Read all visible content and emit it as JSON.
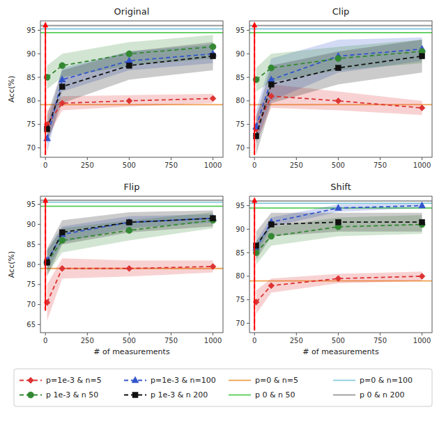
{
  "chart_data": [
    {
      "type": "line",
      "title": "Original",
      "ylabel": "Acc(%)",
      "x": [
        10,
        100,
        500,
        1000
      ],
      "xlim": [
        -30,
        1060
      ],
      "xticks": [
        0,
        250,
        500,
        750,
        1000
      ],
      "ylim": [
        68,
        97
      ],
      "yticks": [
        70,
        75,
        80,
        85,
        90,
        95
      ],
      "grid": false,
      "legend": "bottom",
      "annotations": [
        {
          "type": "arrow",
          "x": 0,
          "y_from": 68.5,
          "y_to": 96.8,
          "dash_to": 95.8,
          "color": "red"
        }
      ],
      "series": [
        {
          "name": "p=1e-3 & n=5",
          "type": "line",
          "color": "#dd3333",
          "line_style": "dashed",
          "marker": "diamond",
          "values": [
            75.0,
            79.5,
            80.0,
            80.5
          ],
          "std": [
            3.0,
            1.5,
            1.2,
            1.0
          ]
        },
        {
          "name": "p=1e-3 & n=100",
          "type": "line",
          "color": "#3355cc",
          "line_style": "dashed",
          "marker": "triangle",
          "values": [
            72.0,
            84.5,
            88.5,
            90.0
          ],
          "std": [
            3.0,
            2.5,
            2.0,
            2.0
          ]
        },
        {
          "name": "p=0 & n=5",
          "type": "hline",
          "color": "#f0a050",
          "line_style": "solid",
          "value": 79.2
        },
        {
          "name": "p=0 & n=100",
          "type": "hline",
          "color": "#88ccdd",
          "line_style": "solid",
          "value": 95.3
        },
        {
          "name": "p 1e-3 & n 50",
          "type": "line",
          "color": "#338833",
          "line_style": "dashed",
          "marker": "circle",
          "values": [
            85.0,
            87.5,
            90.0,
            91.5
          ],
          "std": [
            2.5,
            2.5,
            2.5,
            2.5
          ]
        },
        {
          "name": "p 1e-3 & n 200",
          "type": "line",
          "color": "#111111",
          "line_style": "dashed",
          "marker": "square",
          "values": [
            74.0,
            83.0,
            87.5,
            89.5
          ],
          "std": [
            3.0,
            3.5,
            3.0,
            3.0
          ]
        },
        {
          "name": "p 0 & n 50",
          "type": "hline",
          "color": "#55cc55",
          "line_style": "solid",
          "value": 94.5
        },
        {
          "name": "p 0 & n 200",
          "type": "hline",
          "color": "#999999",
          "line_style": "solid",
          "value": 96.0
        }
      ]
    },
    {
      "type": "line",
      "title": "Clip",
      "x": [
        10,
        100,
        500,
        1000
      ],
      "xlim": [
        -30,
        1060
      ],
      "xticks": [
        0,
        250,
        500,
        750,
        1000
      ],
      "ylim": [
        68,
        97
      ],
      "yticks": [
        70,
        75,
        80,
        85,
        90,
        95
      ],
      "grid": false,
      "annotations": [
        {
          "type": "arrow",
          "x": 0,
          "y_from": 68.5,
          "y_to": 96.8,
          "dash_to": 95.8,
          "color": "red"
        }
      ],
      "series": [
        {
          "name": "p=1e-3 & n=5",
          "type": "line",
          "color": "#dd3333",
          "line_style": "dashed",
          "marker": "diamond",
          "values": [
            74.0,
            81.0,
            80.0,
            78.5
          ],
          "std": [
            3.0,
            2.5,
            2.0,
            1.5
          ]
        },
        {
          "name": "p=1e-3 & n=100",
          "type": "line",
          "color": "#3355cc",
          "line_style": "dashed",
          "marker": "triangle",
          "values": [
            74.5,
            84.5,
            89.5,
            91.0
          ],
          "std": [
            3.5,
            4.5,
            3.5,
            2.5
          ]
        },
        {
          "name": "p=0 & n=5",
          "type": "hline",
          "color": "#f0a050",
          "line_style": "solid",
          "value": 79.2
        },
        {
          "name": "p=0 & n=100",
          "type": "hline",
          "color": "#88ccdd",
          "line_style": "solid",
          "value": 95.3
        },
        {
          "name": "p 1e-3 & n 50",
          "type": "line",
          "color": "#338833",
          "line_style": "dashed",
          "marker": "circle",
          "values": [
            84.5,
            87.0,
            89.0,
            90.5
          ],
          "std": [
            2.5,
            3.0,
            2.5,
            2.5
          ]
        },
        {
          "name": "p 1e-3 & n 200",
          "type": "line",
          "color": "#111111",
          "line_style": "dashed",
          "marker": "square",
          "values": [
            72.5,
            83.5,
            87.0,
            89.5
          ],
          "std": [
            4.0,
            4.0,
            3.5,
            3.5
          ]
        },
        {
          "name": "p 0 & n 50",
          "type": "hline",
          "color": "#55cc55",
          "line_style": "solid",
          "value": 94.5
        },
        {
          "name": "p 0 & n 200",
          "type": "hline",
          "color": "#999999",
          "line_style": "solid",
          "value": 96.0
        }
      ]
    },
    {
      "type": "line",
      "title": "Flip",
      "ylabel": "Acc(%)",
      "xlabel": "# of measurements",
      "x": [
        10,
        100,
        500,
        1000
      ],
      "xlim": [
        -30,
        1060
      ],
      "xticks": [
        0,
        250,
        500,
        750,
        1000
      ],
      "ylim": [
        63,
        97
      ],
      "yticks": [
        65,
        70,
        75,
        80,
        85,
        90,
        95
      ],
      "grid": false,
      "annotations": [
        {
          "type": "arrow",
          "x": 0,
          "y_from": 68.5,
          "y_to": 96.8,
          "dash_to": 95.8,
          "color": "red"
        }
      ],
      "series": [
        {
          "name": "p=1e-3 & n=5",
          "type": "line",
          "color": "#dd3333",
          "line_style": "dashed",
          "marker": "diamond",
          "values": [
            70.5,
            79.0,
            79.0,
            79.5
          ],
          "std": [
            4.5,
            2.5,
            2.0,
            1.5
          ]
        },
        {
          "name": "p=1e-3 & n=100",
          "type": "line",
          "color": "#3355cc",
          "line_style": "dashed",
          "marker": "triangle",
          "values": [
            81.0,
            87.5,
            90.5,
            91.5
          ],
          "std": [
            2.5,
            2.0,
            1.5,
            1.0
          ]
        },
        {
          "name": "p=0 & n=5",
          "type": "hline",
          "color": "#f0a050",
          "line_style": "solid",
          "value": 79.0
        },
        {
          "name": "p=0 & n=100",
          "type": "hline",
          "color": "#88ccdd",
          "line_style": "solid",
          "value": 95.5
        },
        {
          "name": "p 1e-3 & n 50",
          "type": "line",
          "color": "#338833",
          "line_style": "dashed",
          "marker": "circle",
          "values": [
            80.5,
            86.0,
            88.5,
            91.0
          ],
          "std": [
            3.0,
            3.0,
            2.5,
            2.0
          ]
        },
        {
          "name": "p 1e-3 & n 200",
          "type": "line",
          "color": "#111111",
          "line_style": "dashed",
          "marker": "square",
          "values": [
            80.5,
            88.0,
            90.5,
            91.5
          ],
          "std": [
            3.5,
            3.0,
            2.5,
            2.0
          ]
        },
        {
          "name": "p 0 & n 50",
          "type": "hline",
          "color": "#55cc55",
          "line_style": "solid",
          "value": 94.5
        },
        {
          "name": "p 0 & n 200",
          "type": "hline",
          "color": "#999999",
          "line_style": "solid",
          "value": 96.0
        }
      ]
    },
    {
      "type": "line",
      "title": "Shift",
      "xlabel": "# of measurements",
      "x": [
        10,
        100,
        500,
        1000
      ],
      "xlim": [
        -30,
        1060
      ],
      "xticks": [
        0,
        250,
        500,
        750,
        1000
      ],
      "ylim": [
        68,
        97
      ],
      "yticks": [
        70,
        75,
        80,
        85,
        90,
        95
      ],
      "grid": false,
      "annotations": [
        {
          "type": "arrow",
          "x": 0,
          "y_from": 68.5,
          "y_to": 96.8,
          "dash_to": 95.8,
          "color": "red"
        }
      ],
      "series": [
        {
          "name": "p=1e-3 & n=5",
          "type": "line",
          "color": "#dd3333",
          "line_style": "dashed",
          "marker": "diamond",
          "values": [
            74.5,
            78.0,
            79.5,
            80.0
          ],
          "std": [
            2.5,
            1.5,
            1.0,
            1.0
          ]
        },
        {
          "name": "p=1e-3 & n=100",
          "type": "line",
          "color": "#3355cc",
          "line_style": "dashed",
          "marker": "triangle",
          "values": [
            86.0,
            91.5,
            94.5,
            95.0
          ],
          "std": [
            1.5,
            1.0,
            0.8,
            0.5
          ]
        },
        {
          "name": "p=0 & n=5",
          "type": "hline",
          "color": "#f0a050",
          "line_style": "solid",
          "value": 79.0
        },
        {
          "name": "p=0 & n=100",
          "type": "hline",
          "color": "#88ccdd",
          "line_style": "solid",
          "value": 95.5
        },
        {
          "name": "p 1e-3 & n 50",
          "type": "line",
          "color": "#338833",
          "line_style": "dashed",
          "marker": "circle",
          "values": [
            85.0,
            88.5,
            90.5,
            91.0
          ],
          "std": [
            2.5,
            2.0,
            2.0,
            2.0
          ]
        },
        {
          "name": "p 1e-3 & n 200",
          "type": "line",
          "color": "#111111",
          "line_style": "dashed",
          "marker": "square",
          "values": [
            86.5,
            91.0,
            91.5,
            91.5
          ],
          "std": [
            3.0,
            2.5,
            2.0,
            2.0
          ]
        },
        {
          "name": "p 0 & n 50",
          "type": "hline",
          "color": "#55cc55",
          "line_style": "solid",
          "value": 94.5
        },
        {
          "name": "p 0 & n 200",
          "type": "hline",
          "color": "#999999",
          "line_style": "solid",
          "value": 96.0
        }
      ]
    }
  ]
}
